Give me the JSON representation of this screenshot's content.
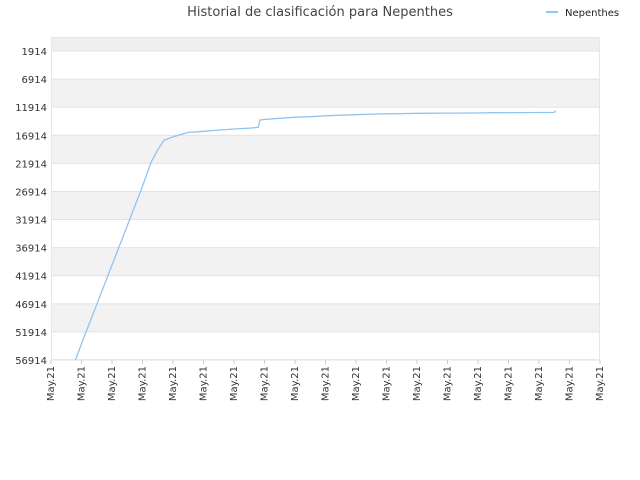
{
  "chart_data": {
    "type": "line",
    "title": "Historial de clasificación para Nepenthes",
    "xlabel": "",
    "ylabel": "",
    "y_axis_inverted": true,
    "ylim": [
      1914,
      56914
    ],
    "yticks": [
      1914,
      6914,
      11914,
      16914,
      21914,
      26914,
      31914,
      36914,
      41914,
      46914,
      51914,
      56914
    ],
    "xtick_labels": [
      "May.21",
      "May.21",
      "May.21",
      "May.21",
      "May.21",
      "May.21",
      "May.21",
      "May.21",
      "May.21",
      "May.21",
      "May.21",
      "May.21",
      "May.21",
      "May.21",
      "May.21",
      "May.21",
      "May.21",
      "May.21",
      "May.21"
    ],
    "grid": true,
    "legend_position": "top-right",
    "series": [
      {
        "name": "Nepenthes",
        "color": "#90c4f0",
        "x": [
          0.8,
          1.0,
          1.5,
          2.0,
          2.5,
          3.0,
          3.3,
          3.5,
          3.7,
          4.0,
          4.3,
          4.5,
          4.8,
          5.0,
          5.5,
          6.0,
          6.5,
          6.8,
          6.85,
          7.0,
          7.5,
          8.0,
          8.5,
          9.0,
          9.5,
          10.0,
          10.5,
          11.0,
          11.5,
          12.0,
          12.5,
          13.0,
          14.0,
          14.5,
          15.0,
          15.5,
          16.0,
          16.5,
          16.55
        ],
        "values": [
          56914,
          54000,
          47000,
          40000,
          33000,
          26000,
          21500,
          19500,
          17800,
          17200,
          16700,
          16400,
          16300,
          16200,
          16000,
          15800,
          15650,
          15500,
          14200,
          14100,
          13900,
          13700,
          13600,
          13450,
          13350,
          13250,
          13150,
          13100,
          13050,
          13000,
          12980,
          12960,
          12950,
          12900,
          12880,
          12870,
          12860,
          12850,
          12500
        ]
      }
    ]
  }
}
